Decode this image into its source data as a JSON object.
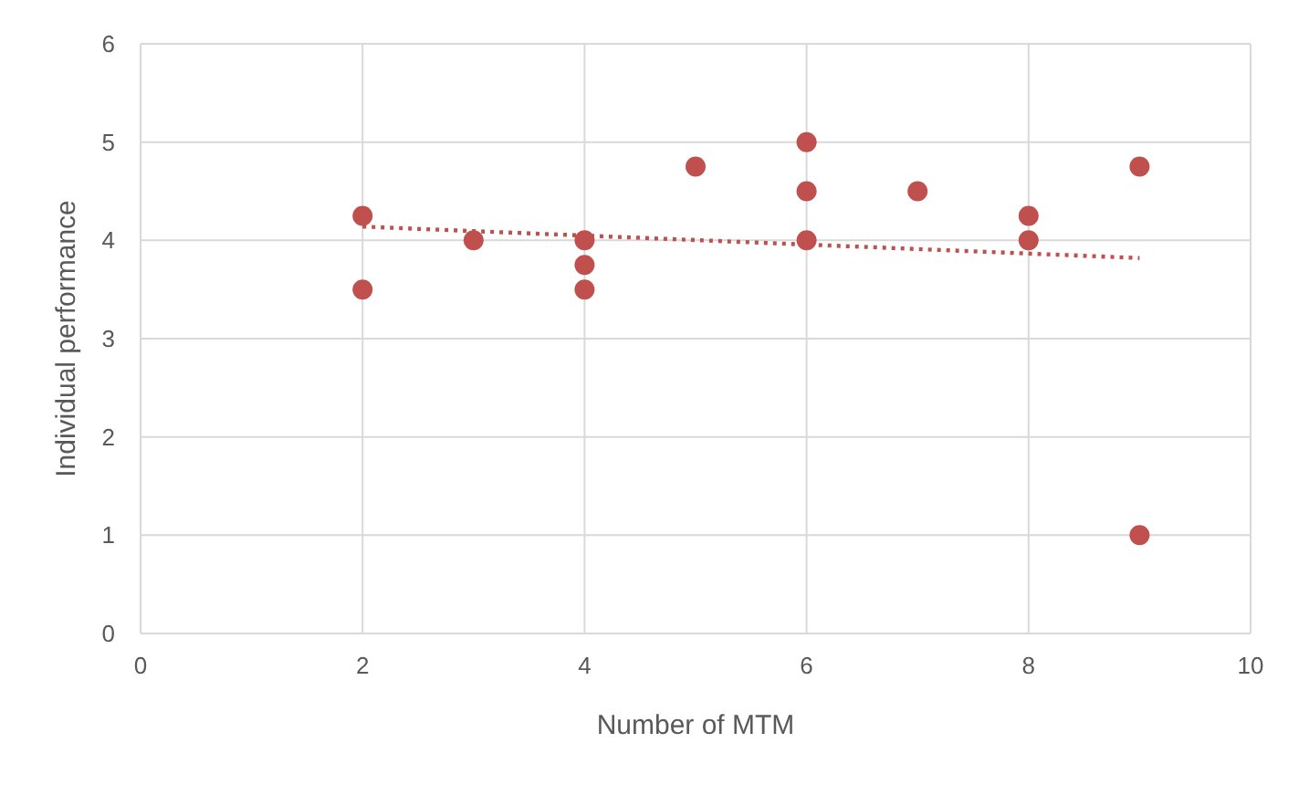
{
  "chart_data": {
    "type": "scatter",
    "xlabel": "Number of MTM",
    "ylabel": "Individual performance",
    "xlim": [
      0,
      10
    ],
    "ylim": [
      0,
      6
    ],
    "xticks": [
      0,
      2,
      4,
      6,
      8,
      10
    ],
    "yticks": [
      0,
      1,
      2,
      3,
      4,
      5,
      6
    ],
    "grid": true,
    "series": [
      {
        "color": "#c0504d",
        "marker": "circle",
        "x": [
          2,
          2,
          3,
          4,
          4,
          4,
          5,
          6,
          6,
          6,
          7,
          8,
          8,
          9,
          9
        ],
        "values": [
          4.25,
          3.5,
          4,
          4,
          3.75,
          3.5,
          4.75,
          5,
          4.5,
          4,
          4.5,
          4.25,
          4,
          4.75,
          1
        ]
      },
      {
        "type": "line",
        "color": "#c0504d",
        "marker": "none",
        "line_style": "dotted",
        "x": [
          2,
          9
        ],
        "values": [
          4.14,
          3.82
        ]
      }
    ]
  }
}
